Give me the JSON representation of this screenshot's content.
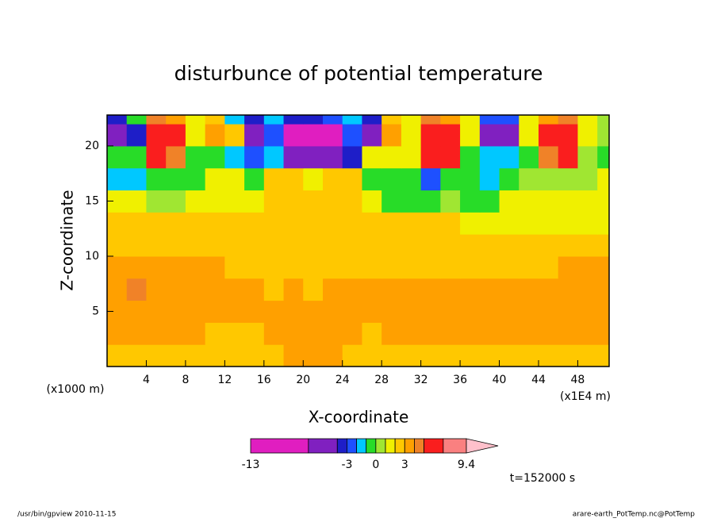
{
  "chart_data": {
    "type": "contour",
    "title": "disturbunce of potential temperature",
    "xlabel": "X-coordinate",
    "ylabel": "Z-coordinate",
    "xunit": "(x1E4 m)",
    "yunit": "(x1000 m)",
    "xlim": [
      0,
      51.2
    ],
    "ylim": [
      0,
      22.8
    ],
    "xticks": [
      4,
      8,
      12,
      16,
      20,
      24,
      28,
      32,
      36,
      40,
      44,
      48
    ],
    "yticks": [
      5,
      10,
      15,
      20
    ],
    "x": [
      1,
      3,
      5,
      7,
      9,
      11,
      13,
      15,
      17,
      19,
      21,
      23,
      25,
      27,
      29,
      31,
      33,
      35,
      37,
      39,
      41,
      43,
      45,
      47,
      49,
      51
    ],
    "z": [
      1,
      3,
      5,
      7,
      9,
      11,
      13,
      15,
      17,
      19,
      21,
      23
    ],
    "values": [
      [
        2.5,
        2.5,
        2.5,
        2.5,
        2.5,
        2.5,
        2.5,
        2.5,
        2.5,
        3.5,
        3.5,
        3.5,
        2.5,
        2.5,
        2.5,
        2.5,
        2.5,
        2.5,
        2.5,
        2.5,
        2.5,
        2.5,
        2.5,
        2.5,
        2.5,
        2.5
      ],
      [
        3.5,
        3.5,
        3.5,
        3.5,
        3.5,
        2.5,
        2.5,
        2.5,
        3.5,
        3.5,
        3.5,
        3.5,
        3.5,
        2.5,
        3.5,
        3.5,
        3.5,
        3.5,
        3.5,
        3.5,
        3.5,
        3.5,
        3.5,
        3.5,
        3.5,
        3.5
      ],
      [
        3.5,
        3.5,
        3.5,
        3.5,
        3.5,
        3.5,
        3.5,
        3.5,
        3.5,
        3.5,
        3.5,
        3.5,
        3.5,
        3.5,
        3.5,
        3.5,
        3.5,
        3.5,
        3.5,
        3.5,
        3.5,
        3.5,
        3.5,
        3.5,
        3.5,
        3.5
      ],
      [
        3.5,
        4.5,
        3.5,
        3.5,
        3.5,
        3.5,
        3.5,
        3.5,
        2.5,
        3.5,
        2.5,
        3.5,
        3.5,
        3.5,
        3.5,
        3.5,
        3.5,
        3.5,
        3.5,
        3.5,
        3.5,
        3.5,
        3.5,
        3.5,
        3.5,
        3.5
      ],
      [
        3.5,
        3.5,
        3.5,
        3.5,
        3.5,
        3.5,
        2.5,
        2.5,
        2.5,
        2.5,
        2.5,
        2.5,
        2.5,
        2.5,
        2.5,
        2.5,
        2.5,
        2.5,
        2.5,
        2.5,
        2.5,
        2.5,
        2.5,
        3.5,
        3.5,
        3.5
      ],
      [
        2.5,
        2.5,
        2.5,
        2.5,
        2.5,
        2.5,
        2.5,
        2.5,
        2.5,
        2.5,
        2.5,
        2.5,
        2.5,
        2.5,
        2.5,
        2.5,
        2.5,
        2.5,
        2.5,
        2.5,
        2.5,
        2.5,
        2.5,
        2.5,
        2.5,
        2.5
      ],
      [
        2.5,
        2.5,
        2.5,
        2.5,
        2.5,
        2.5,
        2.5,
        2.5,
        2.5,
        2.5,
        2.5,
        2.5,
        2.5,
        2.5,
        2.5,
        2.5,
        2.5,
        2.5,
        1.5,
        1.5,
        1.5,
        1.5,
        1.5,
        1.5,
        1.5,
        1.5
      ],
      [
        1.5,
        1.5,
        0.5,
        0.5,
        1.5,
        1.5,
        1.5,
        1.5,
        2.5,
        2.5,
        2.5,
        2.5,
        2.5,
        1.5,
        -0.5,
        -0.5,
        -0.5,
        0.5,
        -0.5,
        -0.5,
        1.5,
        1.5,
        1.5,
        1.5,
        1.5,
        1.5
      ],
      [
        -1.5,
        -1.5,
        -0.5,
        -0.5,
        -0.5,
        1.5,
        1.5,
        -0.5,
        2.5,
        2.5,
        1.5,
        2.5,
        2.5,
        -0.5,
        -0.5,
        -0.5,
        -2.5,
        -0.5,
        -0.5,
        -1.5,
        -0.5,
        0.5,
        0.5,
        0.5,
        0.5,
        1.5
      ],
      [
        -0.5,
        -0.5,
        6,
        4.5,
        -0.5,
        -0.5,
        -1.5,
        -2.5,
        -1.5,
        -5,
        -5,
        -5,
        -3.5,
        1.5,
        1.5,
        1.5,
        6,
        6,
        -0.5,
        -1.5,
        -1.5,
        -0.5,
        4.5,
        6,
        0.5,
        -0.5
      ],
      [
        -6,
        -3.5,
        6,
        6,
        1.5,
        3.5,
        2.5,
        -6,
        -2.5,
        -7.5,
        -7.5,
        -7.5,
        -2.5,
        -6,
        3.5,
        1.5,
        6,
        6,
        1.5,
        -6,
        -6,
        1.5,
        6,
        6,
        1.5,
        0.5
      ],
      [
        -3.5,
        -0.5,
        4.5,
        3.5,
        1.5,
        2.5,
        -1.5,
        -3.5,
        -1.5,
        -3.5,
        -3.5,
        -2.5,
        -1.5,
        -3.5,
        2.5,
        1.5,
        4.5,
        3.5,
        1.5,
        -2.5,
        -2.5,
        1.5,
        3.5,
        4.5,
        1.5,
        0.5
      ]
    ],
    "levels": [
      -13,
      -7,
      -4,
      -3,
      -2,
      -1,
      0,
      1,
      2,
      3,
      4,
      5,
      7,
      9.4
    ],
    "colors": [
      "#e01ec0",
      "#8020c0",
      "#1e1ec8",
      "#1e50ff",
      "#00c8ff",
      "#28dc28",
      "#a0e632",
      "#f0f000",
      "#ffc800",
      "#ffa000",
      "#f08228",
      "#fa1e1e",
      "#fa8080"
    ],
    "extend_color": "#ffc0cb",
    "colorbar_ticks": [
      -13,
      -3,
      0,
      3,
      9.4
    ],
    "time_label": "t=152000 s",
    "footer_left": "/usr/bin/gpview  2010-11-15",
    "footer_right": "arare-earth_PotTemp.nc@PotTemp"
  }
}
